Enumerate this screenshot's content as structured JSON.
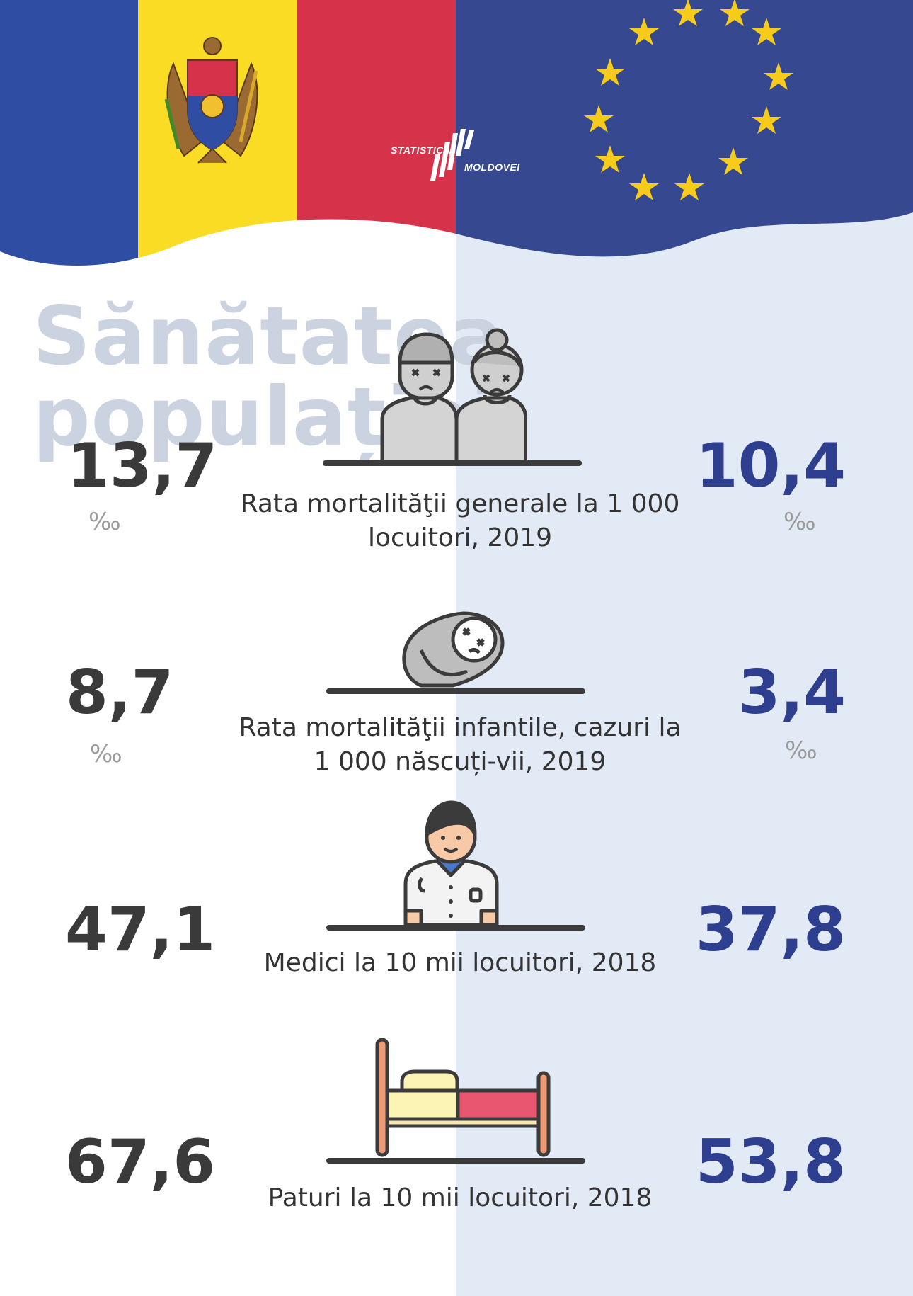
{
  "title": {
    "line1": "Sănătatea",
    "line2": "populației"
  },
  "logo": {
    "line1": "STATISTICA",
    "line2": "MOLDOVEI"
  },
  "colors": {
    "md_blue": "#2f4ea3",
    "md_yellow": "#f9dc23",
    "md_red": "#d6324a",
    "eu_blue": "#364990",
    "eu_star": "#f6cb1a",
    "right_value": "#2f3f8f",
    "left_value": "#3a3a3a"
  },
  "indicators": [
    {
      "label": "Rata mortalităţii generale la 1 000 locuitori, 2019",
      "left_value": "13,7",
      "right_value": "10,4",
      "unit": "‰",
      "icon": "elderly-couple-icon"
    },
    {
      "label": "Rata mortalităţii infantile, cazuri la 1 000 născuți-vii, 2019",
      "left_value": "8,7",
      "right_value": "3,4",
      "unit": "‰",
      "icon": "swaddled-baby-icon"
    },
    {
      "label": "Medici la 10 mii locuitori, 2018",
      "left_value": "47,1",
      "right_value": "37,8",
      "unit": "",
      "icon": "doctor-icon"
    },
    {
      "label": "Paturi la 10 mii locuitori, 2018",
      "left_value": "67,6",
      "right_value": "53,8",
      "unit": "",
      "icon": "hospital-bed-icon"
    }
  ]
}
